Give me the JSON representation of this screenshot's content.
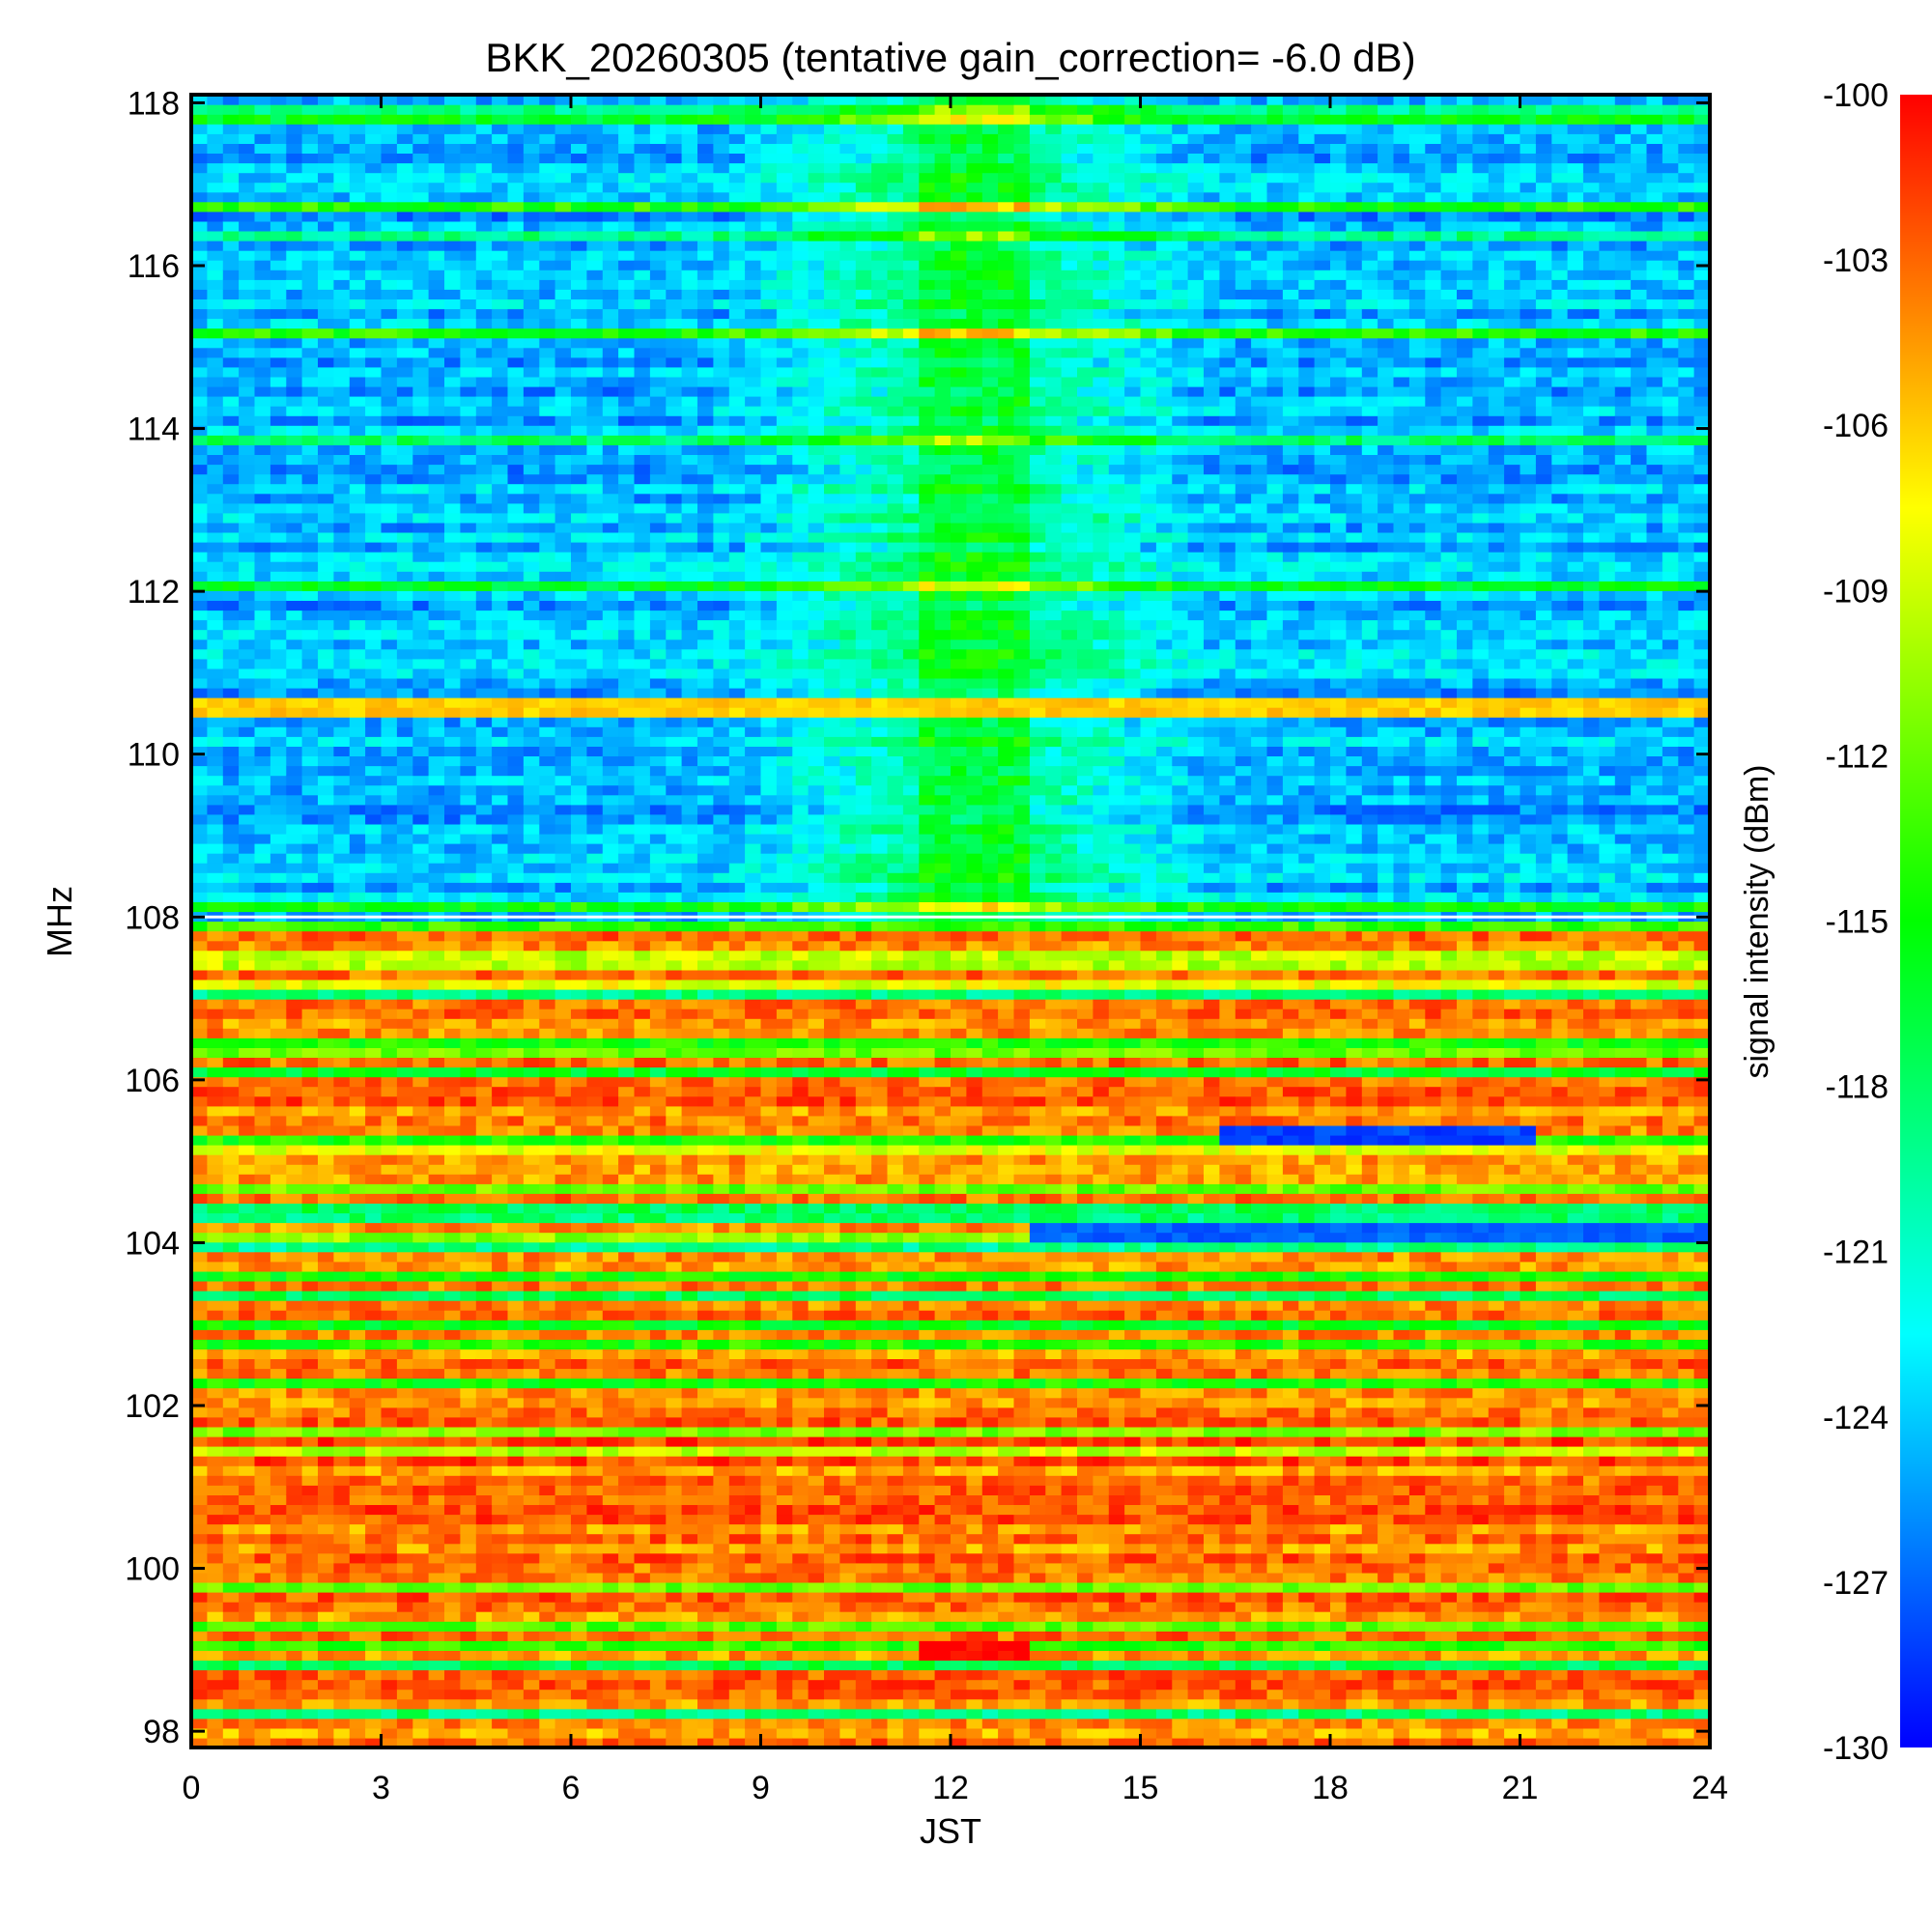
{
  "chart_data": {
    "type": "heatmap",
    "title": "BKK_20260305 (tentative gain_correction= -6.0 dB)",
    "xlabel": "JST",
    "ylabel": "MHz",
    "x_ticks": [
      "0",
      "3",
      "6",
      "9",
      "12",
      "15",
      "18",
      "21",
      "24"
    ],
    "y_ticks": [
      "98",
      "100",
      "102",
      "104",
      "106",
      "108",
      "110",
      "112",
      "114",
      "116",
      "118"
    ],
    "xlim": [
      0,
      24
    ],
    "ylim": [
      97.8,
      118.1
    ],
    "colorbar": {
      "label": "signal intensity (dBm)",
      "ticks": [
        "-100",
        "-103",
        "-106",
        "-109",
        "-112",
        "-115",
        "-118",
        "-121",
        "-124",
        "-127",
        "-130"
      ],
      "range": [
        -130,
        -100
      ]
    },
    "bands": [
      {
        "name": "upper 108-118 MHz",
        "typical_dBm": -126,
        "note": "mostly low intensity (blue) with elevated band around 11.5-13 JST"
      },
      {
        "name": "lower 98-108 MHz",
        "typical_dBm": -102,
        "note": "mostly high intensity (red/yellow) FM broadcast channels"
      }
    ],
    "features": [
      {
        "freq_MHz": 110.55,
        "t_start": 0,
        "t_end": 24,
        "dBm": -106
      },
      {
        "freq_MHz": 105.35,
        "t_start": 16.3,
        "t_end": 21.3,
        "dBm": -128
      },
      {
        "freq_MHz": 104.15,
        "t_start": 13.2,
        "t_end": 24,
        "dBm": -127
      },
      {
        "freq_MHz": 99.0,
        "t_start": 11.5,
        "t_end": 13.2,
        "dBm": -100
      },
      {
        "freq_MHz": 113.0,
        "t_start": 11.5,
        "t_end": 13.2,
        "dBm": -118
      }
    ]
  }
}
